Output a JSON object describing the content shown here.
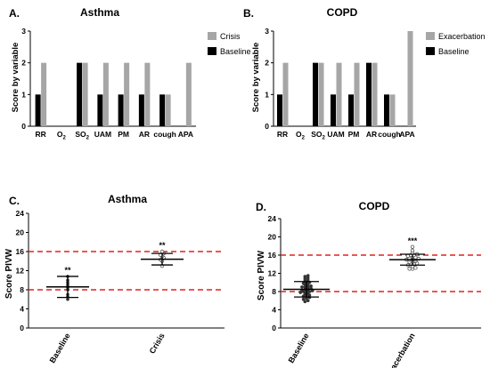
{
  "figure": {
    "colors": {
      "crisis": "#a6a6a6",
      "baseline": "#000000",
      "threshold": "#e3211c",
      "axis": "#000000"
    },
    "panels": [
      {
        "label": "A.",
        "title": "Asthma"
      },
      {
        "label": "B.",
        "title": "COPD"
      },
      {
        "label": "C.",
        "title": "Asthma"
      },
      {
        "label": "D.",
        "title": "COPD"
      }
    ]
  },
  "chart_data": [
    {
      "type": "bar",
      "title": "Asthma",
      "ylabel": "Score by variable",
      "ylim": [
        0,
        3
      ],
      "yticks": [
        "0",
        "1",
        "2",
        "3"
      ],
      "categories": [
        "RR",
        "O2",
        "SO2",
        "UAM",
        "PM",
        "AR",
        "cough",
        "APA"
      ],
      "category_labels": [
        {
          "main": "RR",
          "sub": ""
        },
        {
          "main": "O",
          "sub": "2"
        },
        {
          "main": "SO",
          "sub": "2"
        },
        {
          "main": "UAM",
          "sub": ""
        },
        {
          "main": "PM",
          "sub": ""
        },
        {
          "main": "AR",
          "sub": ""
        },
        {
          "main": "cough",
          "sub": ""
        },
        {
          "main": "APA",
          "sub": ""
        }
      ],
      "series": [
        {
          "name": "Baseline",
          "values": [
            1,
            0,
            2,
            1,
            1,
            1,
            1,
            0
          ]
        },
        {
          "name": "Crisis",
          "values": [
            2,
            0,
            2,
            2,
            2,
            2,
            1,
            2
          ]
        }
      ],
      "legend": [
        {
          "name": "Crisis",
          "color": "#a6a6a6"
        },
        {
          "name": "Baseline",
          "color": "#000000"
        }
      ],
      "legend_position": "top-right"
    },
    {
      "type": "bar",
      "title": "COPD",
      "ylabel": "Score by variable",
      "ylim": [
        0,
        3
      ],
      "yticks": [
        "0",
        "1",
        "2",
        "3"
      ],
      "categories": [
        "RR",
        "O2",
        "SO2",
        "UAM",
        "PM",
        "AR",
        "cough",
        "APA"
      ],
      "category_labels": [
        {
          "main": "RR",
          "sub": ""
        },
        {
          "main": "O",
          "sub": "2"
        },
        {
          "main": "SO",
          "sub": "2"
        },
        {
          "main": "UAM",
          "sub": ""
        },
        {
          "main": "PM",
          "sub": ""
        },
        {
          "main": "AR",
          "sub": ""
        },
        {
          "main": "cough",
          "sub": ""
        },
        {
          "main": "APA",
          "sub": ""
        }
      ],
      "series": [
        {
          "name": "Baseline",
          "values": [
            1,
            0,
            2,
            1,
            1,
            2,
            1,
            0
          ]
        },
        {
          "name": "Exacerbation",
          "values": [
            2,
            0,
            2,
            2,
            2,
            2,
            1,
            3
          ]
        }
      ],
      "legend": [
        {
          "name": "Exacerbation",
          "color": "#a6a6a6"
        },
        {
          "name": "Baseline",
          "color": "#000000"
        }
      ],
      "legend_position": "top-right"
    },
    {
      "type": "scatter",
      "title": "Asthma",
      "ylabel": "Score PIVW",
      "ylim": [
        0,
        24
      ],
      "yticks": [
        "0",
        "4",
        "8",
        "12",
        "16",
        "20",
        "24"
      ],
      "categories": [
        "Baseline",
        "Crisis"
      ],
      "thresholds": [
        8,
        16
      ],
      "groups": [
        {
          "name": "Baseline",
          "mean": 8.6,
          "sd_low": 6.4,
          "sd_high": 10.8,
          "significance": "**",
          "marker": "filled",
          "points": [
            6,
            6.5,
            7,
            8,
            8.5,
            9,
            9.5,
            10,
            10.8
          ]
        },
        {
          "name": "Crisis",
          "mean": 14.4,
          "sd_low": 13.2,
          "sd_high": 15.6,
          "significance": "**",
          "marker": "open",
          "points": [
            13,
            14,
            14.3,
            14.7,
            15,
            15.3,
            15.6,
            16
          ]
        }
      ]
    },
    {
      "type": "scatter",
      "title": "COPD",
      "ylabel": "Score PIVW",
      "ylim": [
        0,
        24
      ],
      "yticks": [
        "0",
        "4",
        "8",
        "12",
        "16",
        "20",
        "24"
      ],
      "categories": [
        "Baseline",
        "Exacerbation"
      ],
      "thresholds": [
        8,
        16
      ],
      "groups": [
        {
          "name": "Baseline",
          "mean": 8.5,
          "sd_low": 6.8,
          "sd_high": 10.2,
          "significance": "",
          "marker": "filled",
          "points": [
            5.8,
            6,
            6.3,
            6.5,
            6.7,
            7,
            7,
            7.2,
            7.5,
            7.5,
            7.8,
            8,
            8,
            8,
            8.2,
            8.3,
            8.5,
            8.5,
            8.7,
            9,
            9,
            9,
            9.2,
            9.5,
            9.5,
            9.8,
            10,
            10,
            10.3,
            10.5,
            10.8,
            11,
            11.3,
            11.5
          ]
        },
        {
          "name": "Exacerbation",
          "mean": 15,
          "sd_low": 13.8,
          "sd_high": 16.2,
          "significance": "***",
          "marker": "open",
          "points": [
            13,
            13,
            13.2,
            13.5,
            13.8,
            14,
            14,
            14.2,
            14.5,
            14.5,
            14.7,
            15,
            15,
            15,
            15,
            15.2,
            15.3,
            15.5,
            15.5,
            15.8,
            16,
            16,
            16.2,
            16.5,
            17,
            17.8
          ]
        }
      ]
    }
  ]
}
